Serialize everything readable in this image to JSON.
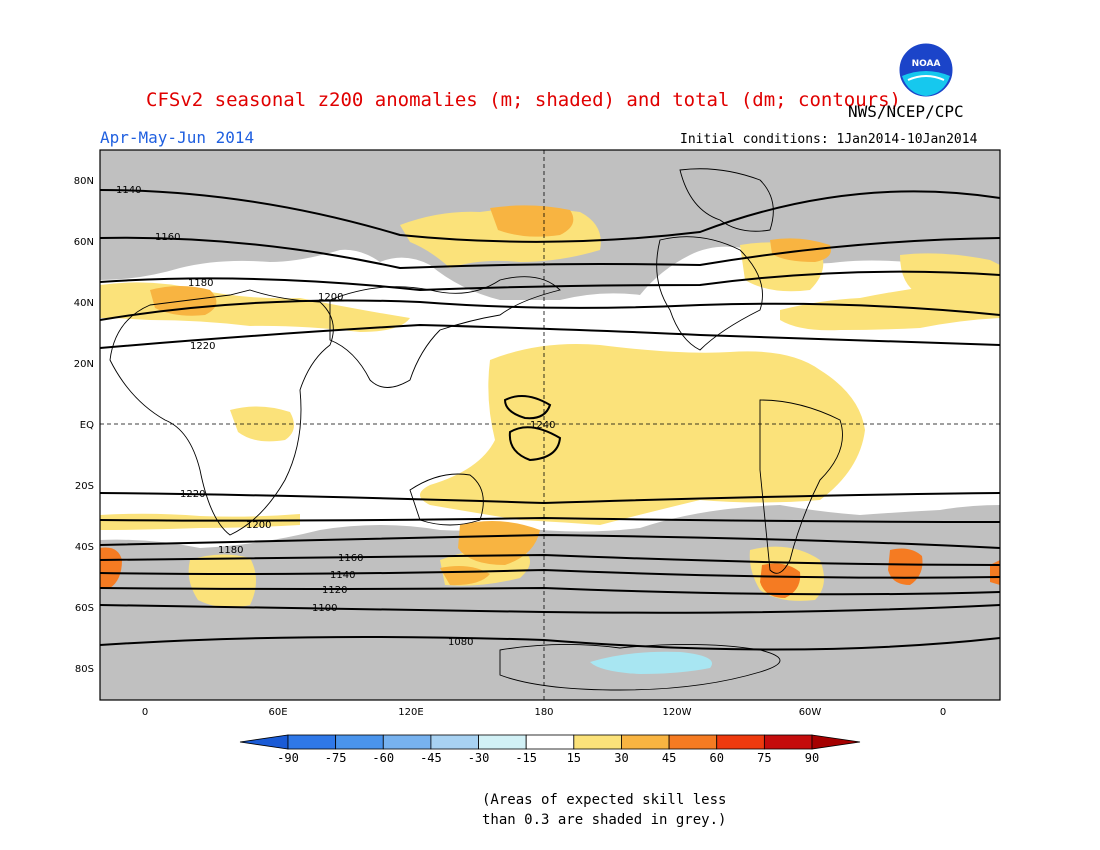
{
  "title": "CFSv2 seasonal z200 anomalies (m; shaded) and total (dm; contours)",
  "agency": "NWS/NCEP/CPC",
  "logo_text": "NOAA",
  "season": "Apr-May-Jun 2014",
  "initial_conditions": "Initial conditions: 1Jan2014-10Jan2014",
  "lat_labels": [
    "80N",
    "60N",
    "40N",
    "20N",
    "EQ",
    "20S",
    "40S",
    "60S",
    "80S"
  ],
  "lon_labels": [
    "0",
    "60E",
    "120E",
    "180",
    "120W",
    "60W",
    "0"
  ],
  "colorbar": {
    "ticks": [
      "-90",
      "-75",
      "-60",
      "-45",
      "-30",
      "-15",
      "15",
      "30",
      "45",
      "60",
      "75",
      "90"
    ],
    "colors": [
      "#1a5bd6",
      "#2f78e8",
      "#4a94ec",
      "#77b2ef",
      "#a8d2f2",
      "#d2f1f6",
      "#ffffff",
      "#fbe27a",
      "#f8b441",
      "#f57b22",
      "#ee3a0e",
      "#c40c0c",
      "#a50000"
    ]
  },
  "contour_labels": [
    "1140",
    "1160",
    "1180",
    "1200",
    "1220",
    "1240",
    "1220",
    "1200",
    "1180",
    "1160",
    "1140",
    "1120",
    "1100",
    "1080"
  ],
  "note_line1": "(Areas of expected skill less",
  "note_line2": "than 0.3 are shaded in grey.)",
  "colors": {
    "title": "#e00000",
    "season": "#2060e0",
    "low_skill_grey": "#c0c0c0"
  }
}
